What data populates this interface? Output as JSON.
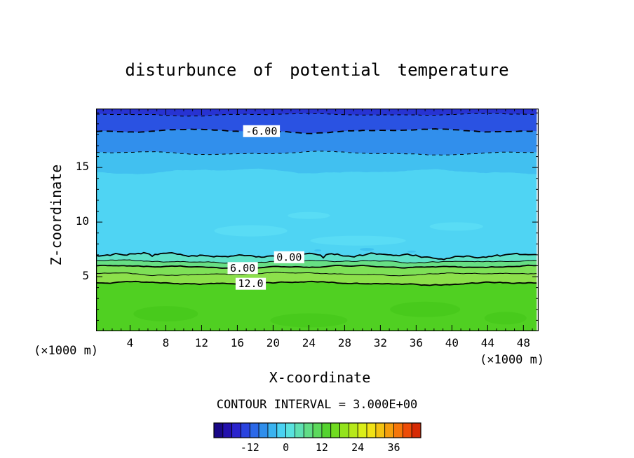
{
  "page": {
    "background": "#ffffff"
  },
  "chart_data": {
    "type": "heatmap",
    "title": "disturbunce of potential temperature",
    "xlabel": "X-coordinate",
    "ylabel": "Z-coordinate",
    "unit_left": "(×1000 m)",
    "unit_right": "(×1000 m)",
    "contour_interval_text": "CONTOUR INTERVAL = 3.000E+00",
    "contour_interval": 3.0,
    "xlim": [
      0.2,
      49.7
    ],
    "zlim": [
      0,
      20.4
    ],
    "x_ticks": [
      4,
      8,
      12,
      16,
      20,
      24,
      28,
      32,
      36,
      40,
      44,
      48
    ],
    "z_ticks": [
      5,
      10,
      15
    ],
    "grid": false,
    "boundaries": [
      {
        "z": 20.4,
        "amp": 0,
        "rough": 0
      },
      {
        "z": 19.85,
        "amp": 1.2,
        "rough": 0.5
      },
      {
        "z": 18.35,
        "amp": 1.8,
        "rough": 0.6
      },
      {
        "z": 16.3,
        "amp": 1.6,
        "rough": 0.6
      },
      {
        "z": 14.6,
        "amp": 2.5,
        "rough": 0.8
      },
      {
        "z": 6.95,
        "amp": 2.2,
        "rough": 2.6
      },
      {
        "z": 6.4,
        "amp": 1.4,
        "rough": 1.2
      },
      {
        "z": 5.9,
        "amp": 1.3,
        "rough": 1.0
      },
      {
        "z": 5.25,
        "amp": 1.2,
        "rough": 1.0
      },
      {
        "z": 4.4,
        "amp": 1.5,
        "rough": 1.2
      },
      {
        "z": 0,
        "amp": 0,
        "rough": 0
      }
    ],
    "band_colors": [
      "#2733d2",
      "#2a52e2",
      "#318fec",
      "#41c0f0",
      "#4fd4f3",
      "#5fe2c8",
      "#67df84",
      "#7ee057",
      "#8ce04b",
      "#50d022"
    ],
    "contours": [
      {
        "value": -9,
        "boundary": 1,
        "style": "dashed",
        "width": 1.1
      },
      {
        "value": -6,
        "boundary": 2,
        "style": "dashed",
        "width": 1.8,
        "label": "-6.00",
        "label_x": 18.7
      },
      {
        "value": -3,
        "boundary": 3,
        "style": "dashed",
        "width": 1.0
      },
      {
        "value": 0,
        "boundary": 5,
        "style": "solid",
        "width": 1.8,
        "label": "0.00",
        "label_x": 21.8
      },
      {
        "value": 3,
        "boundary": 6,
        "style": "solid",
        "width": 1.0
      },
      {
        "value": 6,
        "boundary": 7,
        "style": "solid",
        "width": 1.8,
        "label": "6.00",
        "label_x": 16.6
      },
      {
        "value": 9,
        "boundary": 8,
        "style": "solid",
        "width": 1.0
      },
      {
        "value": 12,
        "boundary": 9,
        "style": "solid",
        "width": 1.8,
        "label": "12.0",
        "label_x": 17.5
      }
    ],
    "patches": [
      {
        "x": 17.5,
        "z": 9.2,
        "rx": 52,
        "ry": 8,
        "color": "#59dcf5"
      },
      {
        "x": 29.5,
        "z": 8.3,
        "rx": 68,
        "ry": 7,
        "color": "#59dcf5"
      },
      {
        "x": 40.5,
        "z": 9.6,
        "rx": 38,
        "ry": 6,
        "color": "#59dcf5"
      },
      {
        "x": 24.0,
        "z": 10.6,
        "rx": 30,
        "ry": 5,
        "color": "#59dcf5"
      },
      {
        "x": 30.5,
        "z": 7.5,
        "rx": 10,
        "ry": 2,
        "color": "#3ec2ee"
      },
      {
        "x": 35.5,
        "z": 7.3,
        "rx": 6,
        "ry": 1.5,
        "color": "#3ec2ee"
      },
      {
        "x": 25.0,
        "z": 7.4,
        "rx": 5,
        "ry": 1.5,
        "color": "#3ec2ee"
      },
      {
        "x": 8.0,
        "z": 1.6,
        "rx": 46,
        "ry": 11,
        "color": "#48ca1c"
      },
      {
        "x": 24.0,
        "z": 1.0,
        "rx": 55,
        "ry": 10,
        "color": "#48ca1c"
      },
      {
        "x": 37.0,
        "z": 2.0,
        "rx": 50,
        "ry": 11,
        "color": "#48ca1c"
      },
      {
        "x": 46.0,
        "z": 1.2,
        "rx": 30,
        "ry": 9,
        "color": "#48ca1c"
      }
    ],
    "colorbar": {
      "min": -24,
      "max": 45,
      "tick_values": [
        -12,
        0,
        12,
        24,
        36
      ],
      "tick_labels": [
        "-12",
        "0",
        "12",
        "24",
        "36"
      ],
      "colors": [
        "#190887",
        "#2310ad",
        "#2a23cd",
        "#2a43df",
        "#2b68e8",
        "#2f8eec",
        "#3ab3f0",
        "#4ad2f2",
        "#59e2de",
        "#5fe0b2",
        "#61dd86",
        "#5cd95c",
        "#55d32f",
        "#70dc20",
        "#93e31c",
        "#b7e91a",
        "#dbee18",
        "#f2e216",
        "#f4c312",
        "#f59e0e",
        "#f5760a",
        "#ed4c07",
        "#d62a04"
      ]
    }
  }
}
